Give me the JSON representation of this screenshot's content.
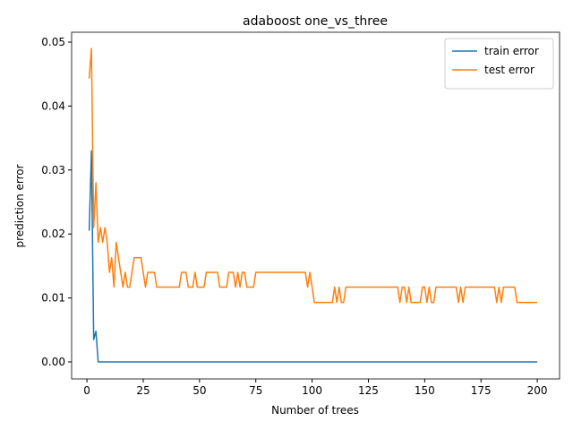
{
  "chart_data": {
    "type": "line",
    "title": "adaboost one_vs_three",
    "xlabel": "Number of trees",
    "ylabel": "prediction error",
    "x": [
      1,
      2,
      3,
      4,
      5,
      6,
      7,
      8,
      9,
      10,
      11,
      12,
      13,
      14,
      15,
      16,
      17,
      18,
      19,
      20,
      21,
      22,
      23,
      24,
      25,
      26,
      27,
      28,
      29,
      30,
      31,
      32,
      33,
      34,
      35,
      36,
      37,
      38,
      39,
      40,
      41,
      42,
      43,
      44,
      45,
      46,
      47,
      48,
      49,
      50,
      51,
      52,
      53,
      54,
      55,
      56,
      57,
      58,
      59,
      60,
      61,
      62,
      63,
      64,
      65,
      66,
      67,
      68,
      69,
      70,
      71,
      72,
      73,
      74,
      75,
      76,
      77,
      78,
      79,
      80,
      81,
      82,
      83,
      84,
      85,
      86,
      87,
      88,
      89,
      90,
      91,
      92,
      93,
      94,
      95,
      96,
      97,
      98,
      99,
      100,
      101,
      102,
      103,
      104,
      105,
      106,
      107,
      108,
      109,
      110,
      111,
      112,
      113,
      114,
      115,
      116,
      117,
      118,
      119,
      120,
      121,
      122,
      123,
      124,
      125,
      126,
      127,
      128,
      129,
      130,
      131,
      132,
      133,
      134,
      135,
      136,
      137,
      138,
      139,
      140,
      141,
      142,
      143,
      144,
      145,
      146,
      147,
      148,
      149,
      150,
      151,
      152,
      153,
      154,
      155,
      156,
      157,
      158,
      159,
      160,
      161,
      162,
      163,
      164,
      165,
      166,
      167,
      168,
      169,
      170,
      171,
      172,
      173,
      174,
      175,
      176,
      177,
      178,
      179,
      180,
      181,
      182,
      183,
      184,
      185,
      186,
      187,
      188,
      189,
      190,
      191,
      192,
      193,
      194,
      195,
      196,
      197,
      198,
      199,
      200
    ],
    "series": [
      {
        "name": "train error",
        "color": "#1f77b4",
        "values": [
          0.0205,
          0.033,
          0.0035,
          0.0048,
          0,
          0,
          0,
          0,
          0,
          0,
          0,
          0,
          0,
          0,
          0,
          0,
          0,
          0,
          0,
          0,
          0,
          0,
          0,
          0,
          0,
          0,
          0,
          0,
          0,
          0,
          0,
          0,
          0,
          0,
          0,
          0,
          0,
          0,
          0,
          0,
          0,
          0,
          0,
          0,
          0,
          0,
          0,
          0,
          0,
          0,
          0,
          0,
          0,
          0,
          0,
          0,
          0,
          0,
          0,
          0,
          0,
          0,
          0,
          0,
          0,
          0,
          0,
          0,
          0,
          0,
          0,
          0,
          0,
          0,
          0,
          0,
          0,
          0,
          0,
          0,
          0,
          0,
          0,
          0,
          0,
          0,
          0,
          0,
          0,
          0,
          0,
          0,
          0,
          0,
          0,
          0,
          0,
          0,
          0,
          0,
          0,
          0,
          0,
          0,
          0,
          0,
          0,
          0,
          0,
          0,
          0,
          0,
          0,
          0,
          0,
          0,
          0,
          0,
          0,
          0,
          0,
          0,
          0,
          0,
          0,
          0,
          0,
          0,
          0,
          0,
          0,
          0,
          0,
          0,
          0,
          0,
          0,
          0,
          0,
          0,
          0,
          0,
          0,
          0,
          0,
          0,
          0,
          0,
          0,
          0,
          0,
          0,
          0,
          0,
          0,
          0,
          0,
          0,
          0,
          0,
          0,
          0,
          0,
          0,
          0,
          0,
          0,
          0,
          0,
          0,
          0,
          0,
          0,
          0,
          0,
          0,
          0,
          0,
          0,
          0,
          0,
          0,
          0,
          0,
          0,
          0,
          0,
          0,
          0,
          0,
          0,
          0,
          0,
          0,
          0,
          0,
          0,
          0,
          0,
          0
        ]
      },
      {
        "name": "test error",
        "color": "#ff7f0e",
        "values": [
          0.0443,
          0.049,
          0.021,
          0.028,
          0.0187,
          0.021,
          0.0187,
          0.021,
          0.0187,
          0.014,
          0.0163,
          0.0117,
          0.0187,
          0.0163,
          0.014,
          0.0117,
          0.014,
          0.0117,
          0.0117,
          0.014,
          0.0163,
          0.0163,
          0.0163,
          0.0163,
          0.014,
          0.0117,
          0.014,
          0.014,
          0.014,
          0.014,
          0.0117,
          0.0117,
          0.0117,
          0.0117,
          0.0117,
          0.0117,
          0.0117,
          0.0117,
          0.0117,
          0.0117,
          0.0117,
          0.014,
          0.014,
          0.014,
          0.0117,
          0.0117,
          0.0117,
          0.014,
          0.0117,
          0.0117,
          0.0117,
          0.0117,
          0.014,
          0.014,
          0.014,
          0.014,
          0.014,
          0.014,
          0.0117,
          0.0117,
          0.0117,
          0.0117,
          0.014,
          0.014,
          0.014,
          0.0117,
          0.014,
          0.0117,
          0.014,
          0.014,
          0.0117,
          0.0117,
          0.0117,
          0.0117,
          0.014,
          0.014,
          0.014,
          0.014,
          0.014,
          0.014,
          0.014,
          0.014,
          0.014,
          0.014,
          0.014,
          0.014,
          0.014,
          0.014,
          0.014,
          0.014,
          0.014,
          0.014,
          0.014,
          0.014,
          0.014,
          0.014,
          0.014,
          0.0117,
          0.014,
          0.0117,
          0.0093,
          0.0093,
          0.0093,
          0.0093,
          0.0093,
          0.0093,
          0.0093,
          0.0093,
          0.0093,
          0.0117,
          0.0093,
          0.0117,
          0.0093,
          0.0093,
          0.0117,
          0.0117,
          0.0117,
          0.0117,
          0.0117,
          0.0117,
          0.0117,
          0.0117,
          0.0117,
          0.0117,
          0.0117,
          0.0117,
          0.0117,
          0.0117,
          0.0117,
          0.0117,
          0.0117,
          0.0117,
          0.0117,
          0.0117,
          0.0117,
          0.0117,
          0.0117,
          0.0117,
          0.0093,
          0.0117,
          0.0117,
          0.0093,
          0.0117,
          0.0093,
          0.0093,
          0.0093,
          0.0093,
          0.0093,
          0.0117,
          0.0117,
          0.0093,
          0.0117,
          0.0093,
          0.0093,
          0.0117,
          0.0117,
          0.0117,
          0.0117,
          0.0117,
          0.0117,
          0.0117,
          0.0117,
          0.0117,
          0.0117,
          0.0093,
          0.0117,
          0.0093,
          0.0117,
          0.0117,
          0.0117,
          0.0117,
          0.0117,
          0.0117,
          0.0117,
          0.0117,
          0.0117,
          0.0117,
          0.0117,
          0.0117,
          0.0117,
          0.0117,
          0.0093,
          0.0117,
          0.0093,
          0.0117,
          0.0117,
          0.0117,
          0.0117,
          0.0117,
          0.0117,
          0.0093,
          0.0093,
          0.0093,
          0.0093,
          0.0093,
          0.0093,
          0.0093,
          0.0093,
          0.0093,
          0.0093
        ]
      }
    ],
    "xlim": [
      -6.8,
      209.9
    ],
    "xticks": [
      0,
      25,
      50,
      75,
      100,
      125,
      150,
      175,
      200
    ],
    "ylim": [
      -0.00266,
      0.05154
    ],
    "yticks": [
      {
        "value": 0,
        "label": "0.00"
      },
      {
        "value": 0.01,
        "label": "0.01"
      },
      {
        "value": 0.02,
        "label": "0.02"
      },
      {
        "value": 0.03,
        "label": "0.03"
      },
      {
        "value": 0.04,
        "label": "0.04"
      },
      {
        "value": 0.05,
        "label": "0.05"
      }
    ],
    "legend": "upper right"
  }
}
